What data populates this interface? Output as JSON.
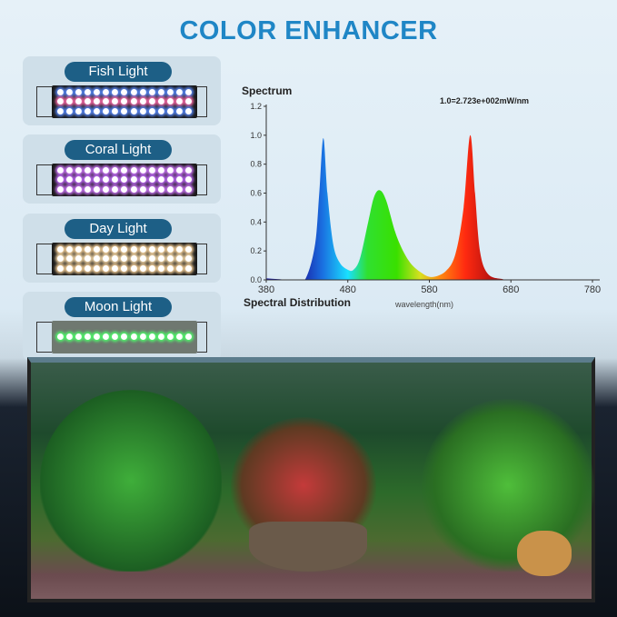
{
  "title": "COLOR ENHANCER",
  "modes": [
    {
      "label": "Fish Light",
      "led_colors": [
        "#5b8cff",
        "#ff6fb0",
        "#5b8cff"
      ]
    },
    {
      "label": "Coral Light",
      "led_colors": [
        "#d27aff",
        "#c56cff",
        "#d27aff"
      ]
    },
    {
      "label": "Day Light",
      "led_colors": [
        "#ffd9a0",
        "#ffe2b0",
        "#ffd9a0"
      ]
    },
    {
      "label": "Moon Light",
      "led_colors": [
        "#4cff6a"
      ]
    }
  ],
  "chart_data": {
    "type": "area",
    "title": "Spectrum",
    "subtitle": "Spectral Distribution",
    "annotation": "1.0=2.723e+002mW/nm",
    "xlabel": "wavelength(nm)",
    "ylabel": "",
    "xlim": [
      380,
      780
    ],
    "ylim": [
      0,
      1.2
    ],
    "xticks": [
      380,
      480,
      580,
      680,
      780
    ],
    "yticks": [
      "0.0",
      "0.2",
      "0.4",
      "0.6",
      "0.8",
      "1.0",
      "1.2"
    ],
    "grid": false,
    "fill": "wavelength-colored",
    "x": [
      380,
      420,
      430,
      440,
      445,
      450,
      455,
      462,
      470,
      480,
      487,
      495,
      505,
      512,
      519,
      527,
      540,
      555,
      570,
      583,
      600,
      612,
      622,
      630,
      636,
      642,
      652,
      670,
      680,
      780
    ],
    "y": [
      0.01,
      0,
      0.03,
      0.25,
      0.6,
      0.98,
      0.6,
      0.25,
      0.12,
      0.07,
      0.07,
      0.15,
      0.4,
      0.57,
      0.62,
      0.55,
      0.3,
      0.13,
      0.05,
      0.02,
      0.06,
      0.18,
      0.5,
      1.0,
      0.6,
      0.2,
      0.04,
      0.005,
      0,
      0
    ]
  }
}
